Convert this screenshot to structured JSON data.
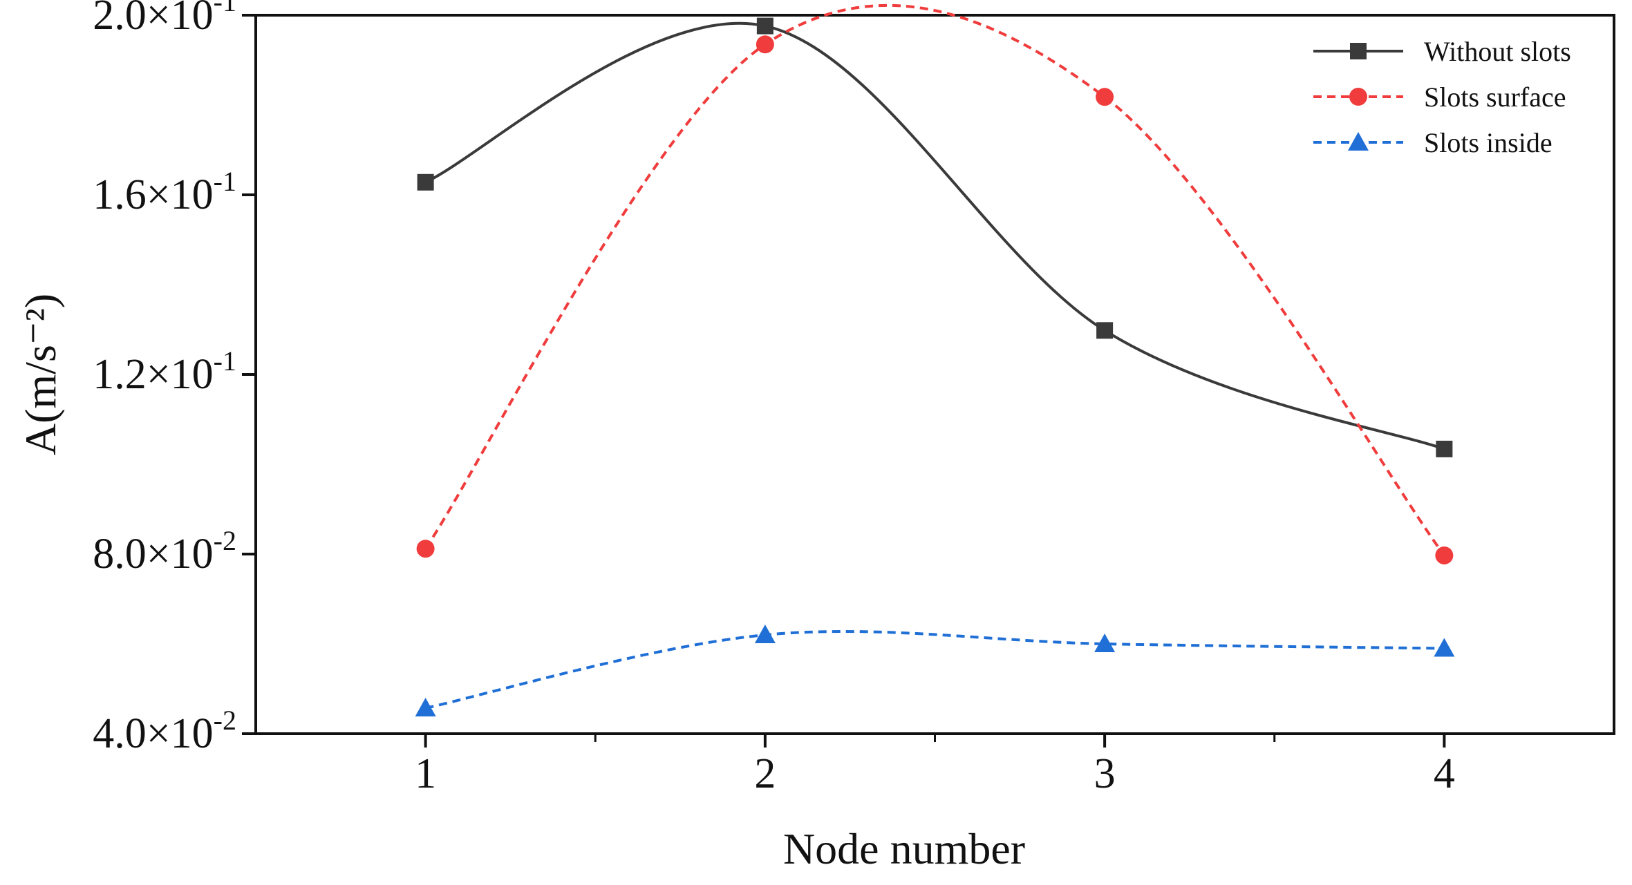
{
  "chart_data": {
    "type": "line",
    "xlabel": "Node number",
    "ylabel": "A(m/s⁻²)",
    "x": [
      1,
      2,
      3,
      4
    ],
    "x_tick_labels": [
      "1",
      "2",
      "3",
      "4"
    ],
    "xlim": [
      0.5,
      4.5
    ],
    "ylim": [
      0.04,
      0.2
    ],
    "y_ticks": [
      0.04,
      0.08,
      0.12,
      0.16,
      0.2
    ],
    "y_tick_labels": [
      {
        "mantissa": "4.0×10",
        "exponent": "-2"
      },
      {
        "mantissa": "8.0×10",
        "exponent": "-2"
      },
      {
        "mantissa": "1.2×10",
        "exponent": "-1"
      },
      {
        "mantissa": "1.6×10",
        "exponent": "-1"
      },
      {
        "mantissa": "2.0×10",
        "exponent": "-1"
      }
    ],
    "grid": false,
    "legend_position": "top-right",
    "series": [
      {
        "name": "Without slots",
        "values": [
          0.1628,
          0.1976,
          0.1298,
          0.1034
        ],
        "color": "#3a3a3a",
        "marker": "square",
        "dash": "solid"
      },
      {
        "name": "Slots surface",
        "values": [
          0.0812,
          0.1935,
          0.1818,
          0.0797
        ],
        "color": "#f03c3c",
        "marker": "circle",
        "dash": "dashed"
      },
      {
        "name": "Slots inside",
        "values": [
          0.0457,
          0.062,
          0.06,
          0.059
        ],
        "color": "#1f6fd6",
        "marker": "triangle",
        "dash": "dashed"
      }
    ]
  }
}
